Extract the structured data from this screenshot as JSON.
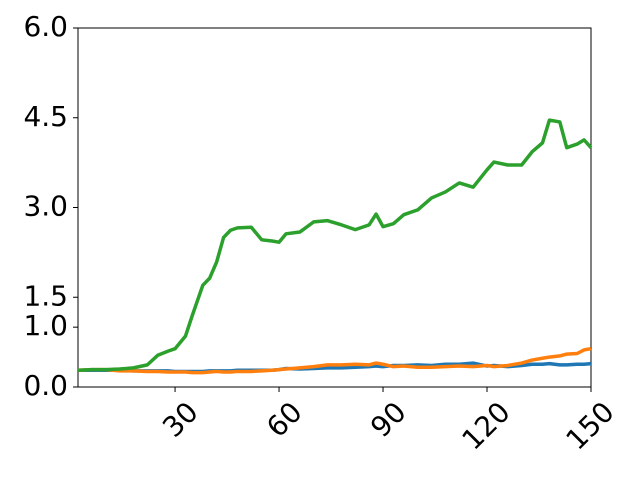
{
  "chart_data": {
    "type": "line",
    "x": [
      2,
      6,
      10,
      14,
      18,
      22,
      25,
      28,
      30,
      33,
      35,
      38,
      40,
      42,
      44,
      46,
      48,
      52,
      55,
      58,
      60,
      62,
      66,
      70,
      74,
      78,
      82,
      86,
      88,
      90,
      93,
      96,
      100,
      104,
      108,
      112,
      116,
      120,
      122,
      126,
      130,
      133,
      136,
      138,
      141,
      143,
      146,
      148,
      150
    ],
    "series": [
      {
        "color": "#1f77b4",
        "values": [
          0.28,
          0.28,
          0.28,
          0.28,
          0.27,
          0.27,
          0.27,
          0.27,
          0.26,
          0.26,
          0.26,
          0.26,
          0.27,
          0.27,
          0.27,
          0.27,
          0.28,
          0.28,
          0.28,
          0.28,
          0.29,
          0.31,
          0.3,
          0.31,
          0.32,
          0.32,
          0.33,
          0.34,
          0.35,
          0.34,
          0.36,
          0.36,
          0.37,
          0.36,
          0.38,
          0.38,
          0.4,
          0.35,
          0.36,
          0.34,
          0.36,
          0.38,
          0.38,
          0.39,
          0.37,
          0.37,
          0.38,
          0.38,
          0.39
        ]
      },
      {
        "color": "#ff7f0e",
        "values": [
          0.28,
          0.29,
          0.29,
          0.27,
          0.27,
          0.26,
          0.26,
          0.25,
          0.25,
          0.25,
          0.24,
          0.24,
          0.25,
          0.26,
          0.25,
          0.25,
          0.26,
          0.26,
          0.27,
          0.28,
          0.29,
          0.3,
          0.32,
          0.34,
          0.37,
          0.37,
          0.38,
          0.37,
          0.4,
          0.38,
          0.34,
          0.35,
          0.33,
          0.33,
          0.34,
          0.35,
          0.34,
          0.36,
          0.34,
          0.36,
          0.4,
          0.45,
          0.48,
          0.5,
          0.52,
          0.55,
          0.56,
          0.62,
          0.64
        ]
      },
      {
        "color": "#2ca02c",
        "values": [
          0.28,
          0.29,
          0.29,
          0.3,
          0.32,
          0.37,
          0.53,
          0.6,
          0.64,
          0.85,
          1.2,
          1.7,
          1.82,
          2.09,
          2.5,
          2.62,
          2.66,
          2.67,
          2.46,
          2.44,
          2.42,
          2.56,
          2.59,
          2.76,
          2.78,
          2.71,
          2.63,
          2.71,
          2.89,
          2.68,
          2.73,
          2.88,
          2.96,
          3.16,
          3.26,
          3.41,
          3.34,
          3.63,
          3.76,
          3.71,
          3.71,
          3.93,
          4.08,
          4.46,
          4.43,
          4.0,
          4.06,
          4.13,
          4.0
        ]
      }
    ],
    "xlim": [
      2,
      150
    ],
    "xticks": [
      30,
      60,
      90,
      120,
      150
    ],
    "ylim": [
      0,
      6
    ],
    "yticks": [
      {
        "value": 0,
        "label": "0.0"
      },
      {
        "value": 1,
        "label": "1.0"
      },
      {
        "value": 1.5,
        "label": "1.5"
      },
      {
        "value": 3,
        "label": "3.0"
      },
      {
        "value": 4.5,
        "label": "4.5"
      },
      {
        "value": 6,
        "label": "6.0"
      }
    ]
  }
}
